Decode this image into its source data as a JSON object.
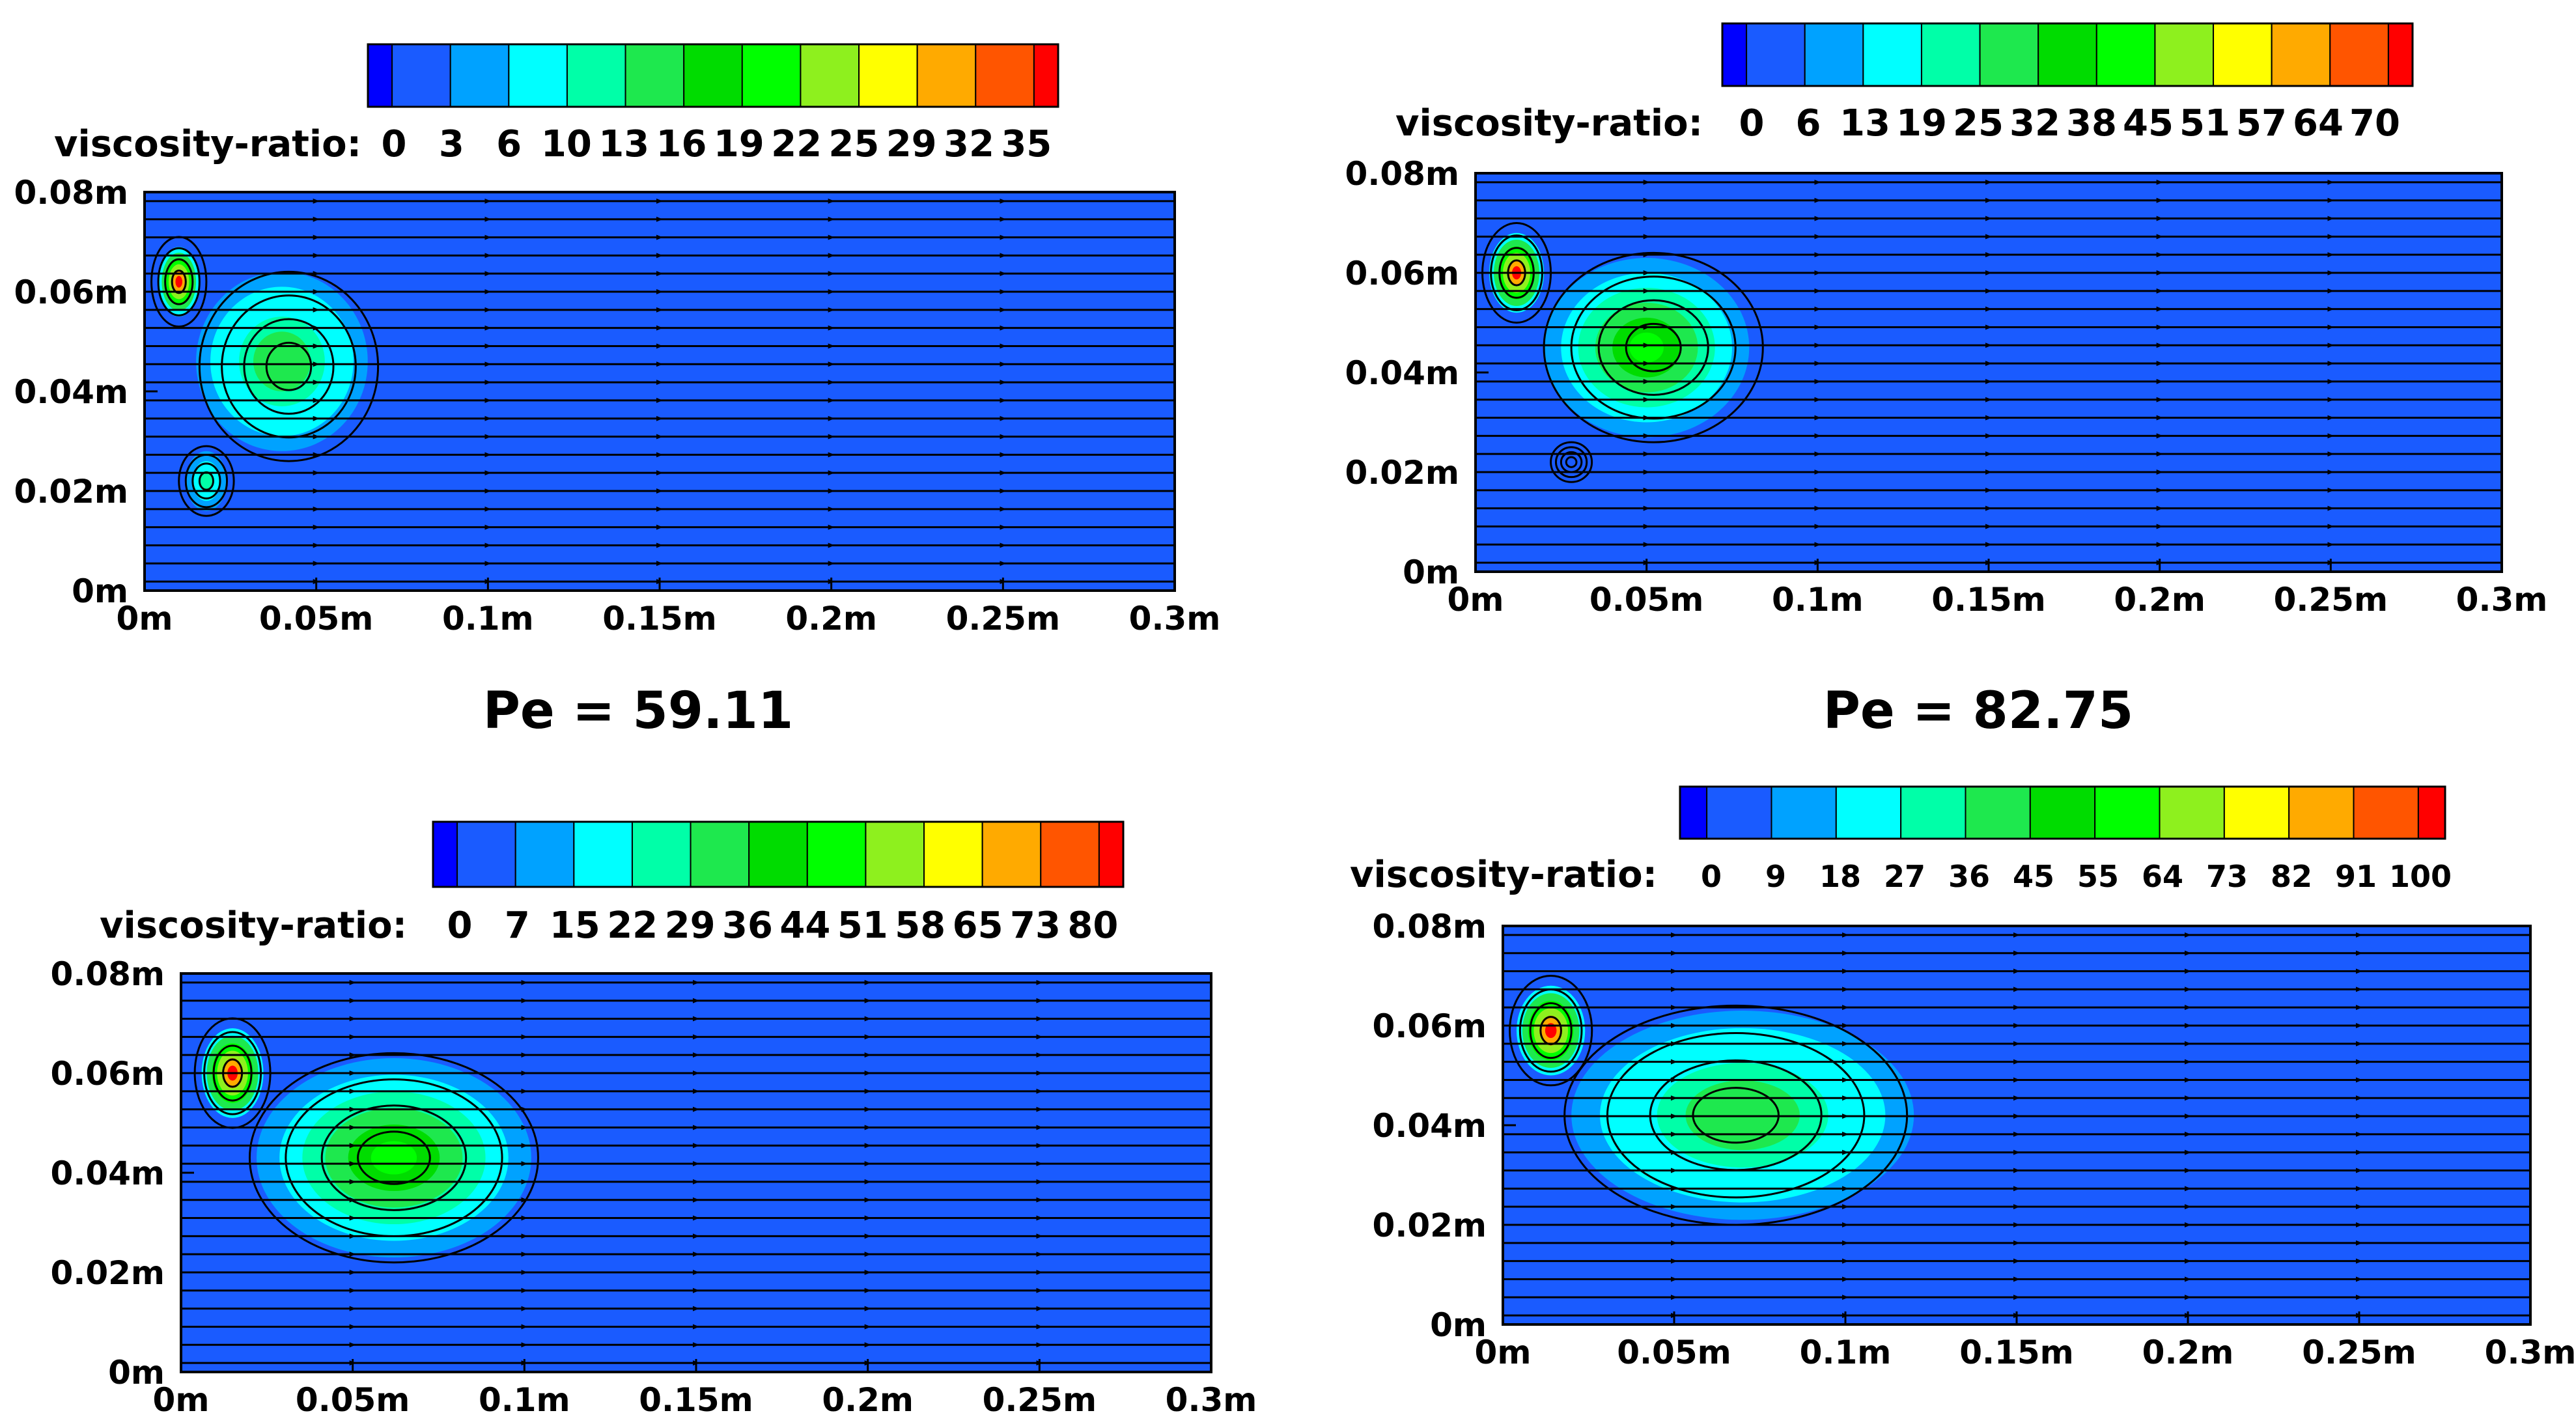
{
  "chart_data": [
    {
      "type": "heatmap",
      "panel": "top-left",
      "colorbar": {
        "label": "viscosity-ratio:",
        "ticks": [
          "0",
          "3",
          "6",
          "10",
          "13",
          "16",
          "19",
          "22",
          "25",
          "29",
          "32",
          "35"
        ],
        "min": 0,
        "max": 35
      },
      "x_ticks": [
        "0m",
        "0.05m",
        "0.1m",
        "0.15m",
        "0.2m",
        "0.25m",
        "0.3m"
      ],
      "y_ticks": [
        "0m",
        "0.02m",
        "0.04m",
        "0.06m",
        "0.08m"
      ],
      "xlim": [
        0,
        0.3
      ],
      "ylim": [
        0,
        0.08
      ],
      "background_value": 3,
      "hotspots": [
        {
          "x": 0.01,
          "y": 0.062,
          "rx": 0.006,
          "ry": 0.007,
          "peak": 35
        },
        {
          "x": 0.04,
          "y": 0.046,
          "rx": 0.025,
          "ry": 0.018,
          "peak": 16
        },
        {
          "x": 0.018,
          "y": 0.022,
          "rx": 0.006,
          "ry": 0.006,
          "peak": 13
        }
      ],
      "vortices": [
        {
          "x": 0.01,
          "y": 0.062,
          "rx": 0.008,
          "ry": 0.009
        },
        {
          "x": 0.042,
          "y": 0.045,
          "rx": 0.026,
          "ry": 0.019
        },
        {
          "x": 0.018,
          "y": 0.022,
          "rx": 0.008,
          "ry": 0.007
        }
      ],
      "pe_caption": "Pe = 59.11"
    },
    {
      "type": "heatmap",
      "panel": "top-right",
      "colorbar": {
        "label": "viscosity-ratio:",
        "ticks": [
          "0",
          "6",
          "13",
          "19",
          "25",
          "32",
          "38",
          "45",
          "51",
          "57",
          "64",
          "70"
        ],
        "min": 0,
        "max": 70
      },
      "x_ticks": [
        "0m",
        "0.05m",
        "0.1m",
        "0.15m",
        "0.2m",
        "0.25m",
        "0.3m"
      ],
      "y_ticks": [
        "0m",
        "0.02m",
        "0.04m",
        "0.06m",
        "0.08m"
      ],
      "xlim": [
        0,
        0.3
      ],
      "ylim": [
        0,
        0.08
      ],
      "background_value": 6,
      "hotspots": [
        {
          "x": 0.012,
          "y": 0.06,
          "rx": 0.008,
          "ry": 0.008,
          "peak": 70
        },
        {
          "x": 0.05,
          "y": 0.045,
          "rx": 0.03,
          "ry": 0.018,
          "peak": 38
        }
      ],
      "vortices": [
        {
          "x": 0.012,
          "y": 0.06,
          "rx": 0.01,
          "ry": 0.01
        },
        {
          "x": 0.052,
          "y": 0.045,
          "rx": 0.032,
          "ry": 0.019
        },
        {
          "x": 0.028,
          "y": 0.022,
          "rx": 0.006,
          "ry": 0.004
        }
      ],
      "pe_caption": "Pe = 82.75"
    },
    {
      "type": "heatmap",
      "panel": "bottom-left",
      "colorbar": {
        "label": "viscosity-ratio:",
        "ticks": [
          "0",
          "7",
          "15",
          "22",
          "29",
          "36",
          "44",
          "51",
          "58",
          "65",
          "73",
          "80"
        ],
        "min": 0,
        "max": 80
      },
      "x_ticks": [
        "0m",
        "0.05m",
        "0.1m",
        "0.15m",
        "0.2m",
        "0.25m",
        "0.3m"
      ],
      "y_ticks": [
        "0m",
        "0.02m",
        "0.04m",
        "0.06m",
        "0.08m"
      ],
      "xlim": [
        0,
        0.3
      ],
      "ylim": [
        0,
        0.08
      ],
      "background_value": 7,
      "hotspots": [
        {
          "x": 0.015,
          "y": 0.06,
          "rx": 0.009,
          "ry": 0.009,
          "peak": 80
        },
        {
          "x": 0.062,
          "y": 0.043,
          "rx": 0.04,
          "ry": 0.02,
          "peak": 44
        }
      ],
      "vortices": [
        {
          "x": 0.015,
          "y": 0.06,
          "rx": 0.011,
          "ry": 0.011
        },
        {
          "x": 0.062,
          "y": 0.043,
          "rx": 0.042,
          "ry": 0.021
        }
      ],
      "pe_caption": ""
    },
    {
      "type": "heatmap",
      "panel": "bottom-right",
      "colorbar": {
        "label": "viscosity-ratio:",
        "ticks": [
          "0",
          "9",
          "18",
          "27",
          "36",
          "45",
          "55",
          "64",
          "73",
          "82",
          "91",
          "100"
        ],
        "min": 0,
        "max": 100
      },
      "x_ticks": [
        "0m",
        "0.05m",
        "0.1m",
        "0.15m",
        "0.2m",
        "0.25m",
        "0.3m"
      ],
      "y_ticks": [
        "0m",
        "0.02m",
        "0.04m",
        "0.06m",
        "0.08m"
      ],
      "xlim": [
        0,
        0.3
      ],
      "ylim": [
        0,
        0.08
      ],
      "background_value": 9,
      "hotspots": [
        {
          "x": 0.014,
          "y": 0.059,
          "rx": 0.01,
          "ry": 0.009,
          "peak": 100
        },
        {
          "x": 0.07,
          "y": 0.042,
          "rx": 0.05,
          "ry": 0.021,
          "peak": 45
        }
      ],
      "vortices": [
        {
          "x": 0.014,
          "y": 0.059,
          "rx": 0.012,
          "ry": 0.011
        },
        {
          "x": 0.068,
          "y": 0.042,
          "rx": 0.05,
          "ry": 0.022
        }
      ],
      "pe_caption": ""
    }
  ],
  "colormap": [
    "#0000ff",
    "#1a5bff",
    "#00a2ff",
    "#00ffff",
    "#00ffa8",
    "#1ee84e",
    "#00dc00",
    "#00ff00",
    "#8ef01e",
    "#ffff00",
    "#ffaa00",
    "#ff5500",
    "#ff0000"
  ],
  "field_color": "#1a5bff",
  "streamline_color": "#000000"
}
